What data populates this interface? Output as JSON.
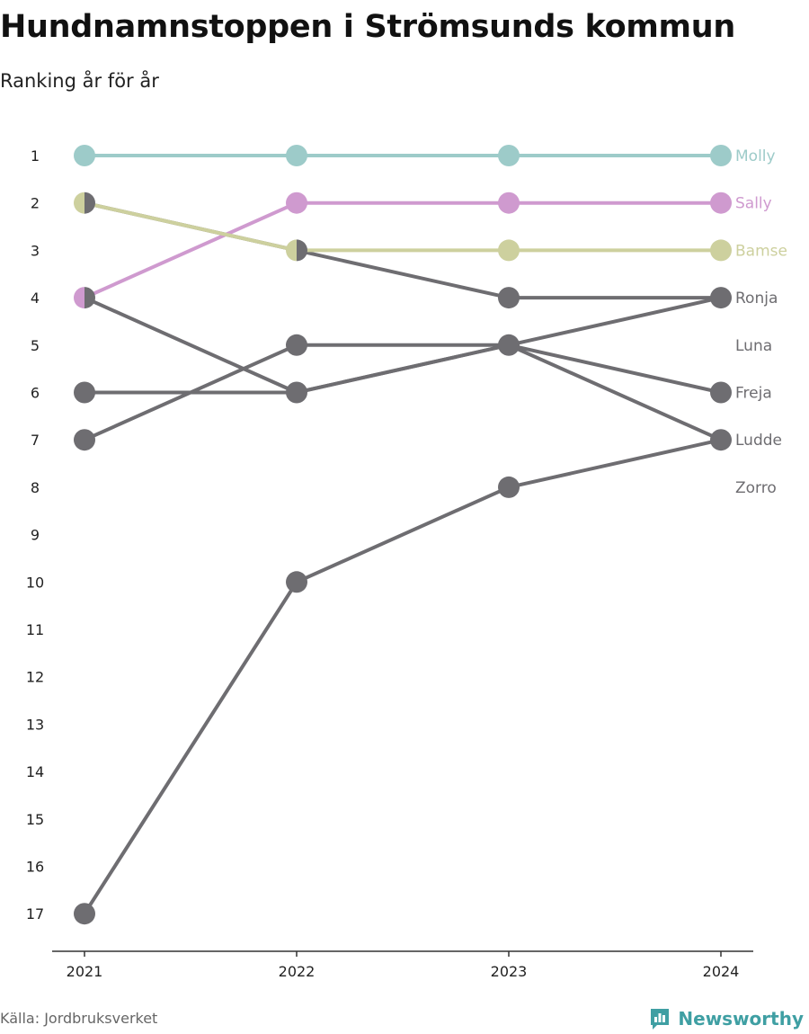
{
  "header": {
    "title": "Hundnamnstoppen i Strömsunds kommun",
    "subtitle": "Ranking år för år"
  },
  "footer": {
    "source": "Källa: Jordbruksverket",
    "brand": "Newsworthy",
    "brand_icon": "bar-chart-logo-icon"
  },
  "colors": {
    "Molly": "#9dcbc9",
    "Sally": "#cf9acf",
    "Bamse": "#cdd09e",
    "default": "#6e6d71",
    "axis": "#333333",
    "brand": "#3f9fa3"
  },
  "chart_data": {
    "type": "line",
    "subtype": "bump",
    "x": [
      "2021",
      "2022",
      "2023",
      "2024"
    ],
    "y_ticks": [
      1,
      2,
      3,
      4,
      5,
      6,
      7,
      8,
      9,
      10,
      11,
      12,
      13,
      14,
      15,
      16,
      17
    ],
    "y_reversed": true,
    "ylim": [
      1,
      17
    ],
    "series": [
      {
        "name": "Molly",
        "values": [
          1,
          1,
          1,
          1
        ]
      },
      {
        "name": "Sally",
        "values": [
          4,
          2,
          2,
          2
        ]
      },
      {
        "name": "Bamse",
        "values": [
          2,
          3,
          3,
          3
        ]
      },
      {
        "name": "Ronja",
        "values": [
          2,
          3,
          4,
          4
        ]
      },
      {
        "name": "Luna",
        "values": [
          7,
          5,
          5,
          4
        ]
      },
      {
        "name": "Freja",
        "values": [
          4,
          6,
          5,
          6
        ]
      },
      {
        "name": "Ludde",
        "values": [
          6,
          6,
          5,
          7
        ]
      },
      {
        "name": "Zorro",
        "values": [
          17,
          10,
          8,
          7
        ]
      }
    ],
    "end_labels": [
      {
        "name": "Molly",
        "rank": 1
      },
      {
        "name": "Sally",
        "rank": 2
      },
      {
        "name": "Bamse",
        "rank": 3
      },
      {
        "name": "Ronja",
        "rank": 4
      },
      {
        "name": "Luna",
        "rank": 5
      },
      {
        "name": "Freja",
        "rank": 6
      },
      {
        "name": "Ludde",
        "rank": 7
      },
      {
        "name": "Zorro",
        "rank": 8
      }
    ],
    "grid": false,
    "legend": "direct-labels-right"
  }
}
